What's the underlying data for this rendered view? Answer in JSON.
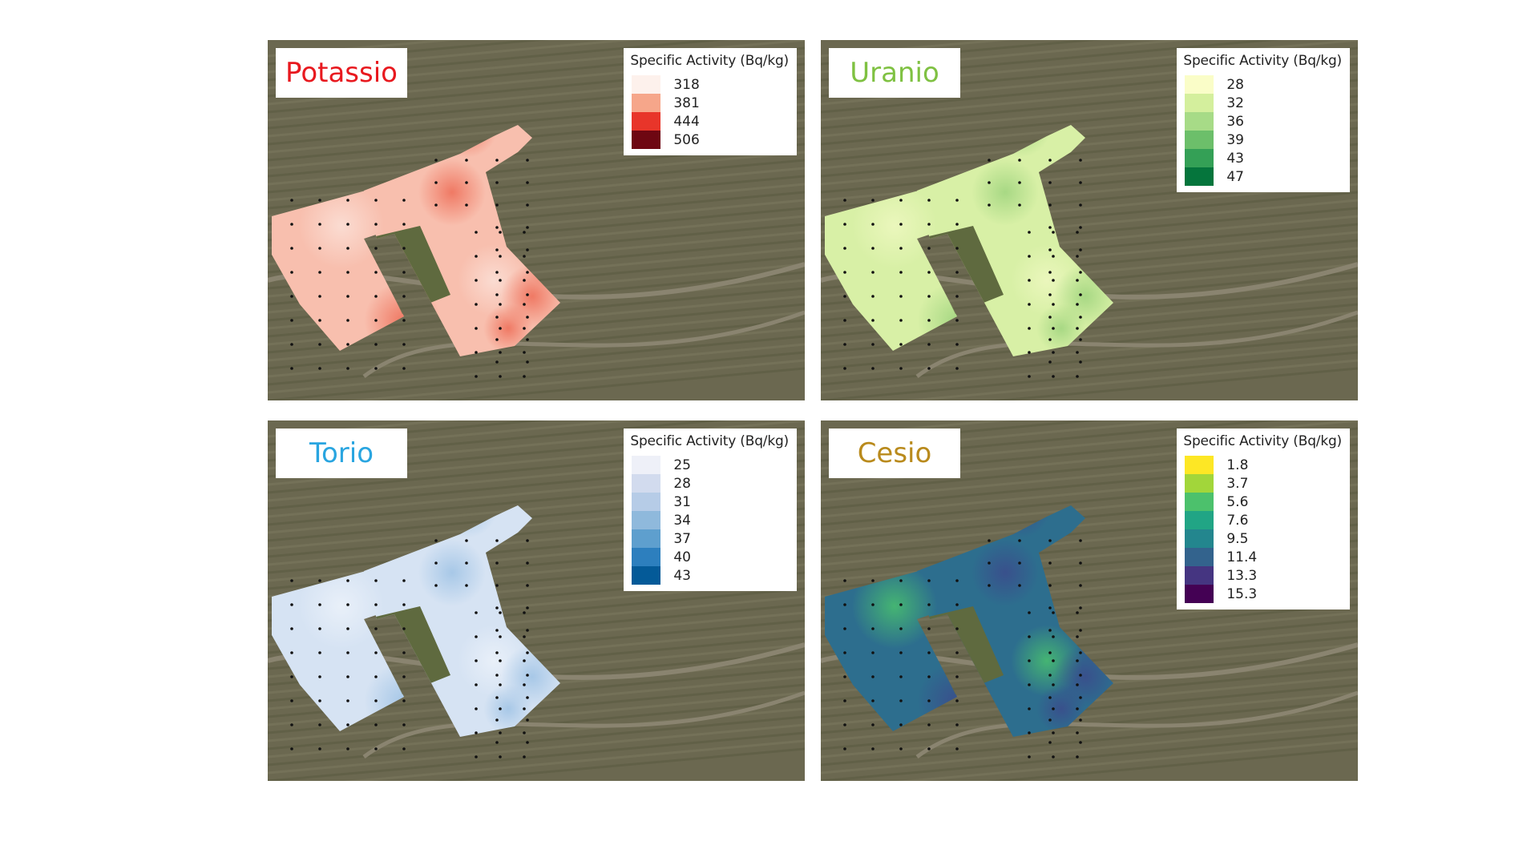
{
  "panels": [
    {
      "key": "potassio",
      "title": "Potassio",
      "title_color": "#e8191f",
      "legend_title": "Specific Activity (Bq/kg)",
      "palette_name": "reds",
      "legend": [
        {
          "label": "318",
          "color": "#fdf1ec"
        },
        {
          "label": "381",
          "color": "#f6a68a"
        },
        {
          "label": "444",
          "color": "#e8352a"
        },
        {
          "label": "506",
          "color": "#6e0712"
        }
      ],
      "fill_colors": [
        "#f8bfae",
        "#f3907a",
        "#ee6d57",
        "#fbe1d8"
      ]
    },
    {
      "key": "uranio",
      "title": "Uranio",
      "title_color": "#7fc142",
      "legend_title": "Specific Activity (Bq/kg)",
      "palette_name": "greens",
      "legend": [
        {
          "label": "28",
          "color": "#fafdc8"
        },
        {
          "label": "32",
          "color": "#d4ef9d"
        },
        {
          "label": "36",
          "color": "#a7db87"
        },
        {
          "label": "39",
          "color": "#6cbf6a"
        },
        {
          "label": "43",
          "color": "#34a056"
        },
        {
          "label": "47",
          "color": "#05753c"
        }
      ],
      "fill_colors": [
        "#d8f0a6",
        "#bde497",
        "#9fd47e",
        "#eef8c0"
      ]
    },
    {
      "key": "torio",
      "title": "Torio",
      "title_color": "#29a5e0",
      "legend_title": "Specific Activity (Bq/kg)",
      "palette_name": "blues",
      "legend": [
        {
          "label": "25",
          "color": "#eef0f8"
        },
        {
          "label": "28",
          "color": "#d2dbee"
        },
        {
          "label": "31",
          "color": "#b6cce7"
        },
        {
          "label": "34",
          "color": "#8fb9dc"
        },
        {
          "label": "37",
          "color": "#5e9fce"
        },
        {
          "label": "40",
          "color": "#2d7fbe"
        },
        {
          "label": "43",
          "color": "#045a98"
        }
      ],
      "fill_colors": [
        "#d6e3f3",
        "#bcd4ec",
        "#9fc3e5",
        "#ecf2fa"
      ]
    },
    {
      "key": "cesio",
      "title": "Cesio",
      "title_color": "#b98a1c",
      "legend_title": "Specific Activity (Bq/kg)",
      "palette_name": "viridis",
      "legend": [
        {
          "label": "1.8",
          "color": "#fde725"
        },
        {
          "label": "3.7",
          "color": "#a2d63a"
        },
        {
          "label": "5.6",
          "color": "#4cc16c"
        },
        {
          "label": "7.6",
          "color": "#21a585"
        },
        {
          "label": "9.5",
          "color": "#23868e"
        },
        {
          "label": "11.4",
          "color": "#33638d"
        },
        {
          "label": "13.3",
          "color": "#453581"
        },
        {
          "label": "15.3",
          "color": "#440154"
        }
      ],
      "fill_colors": [
        "#2d6e8e",
        "#22a085",
        "#3b4b8c",
        "#49c16e"
      ]
    }
  ]
}
